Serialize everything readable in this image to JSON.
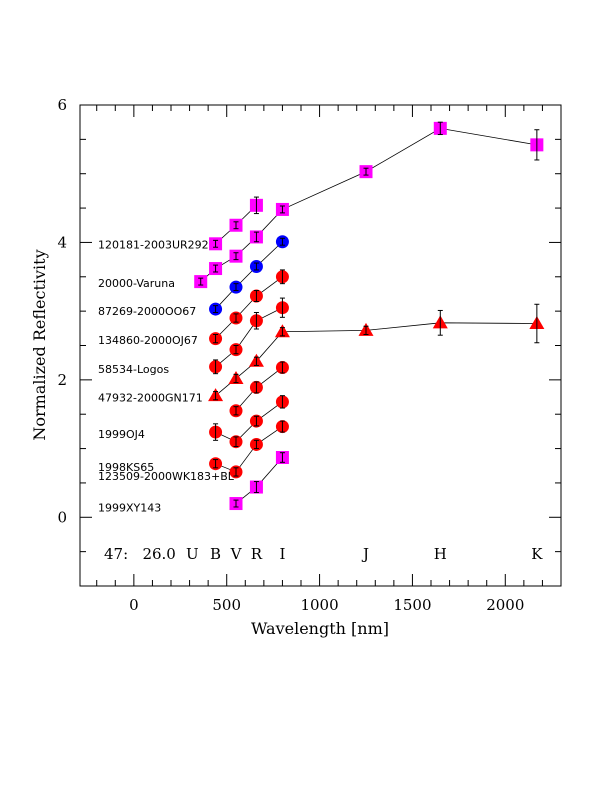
{
  "chart_data": {
    "type": "scatter",
    "xlabel": "Wavelength [nm]",
    "ylabel": "Normalized Reflectivity",
    "xlim": [
      -290,
      2300
    ],
    "ylim": [
      -1,
      6
    ],
    "xticks": [
      0,
      500,
      1000,
      1500,
      2000
    ],
    "yticks": [
      0,
      2,
      4,
      6
    ],
    "band_prefix": "47:   26.0",
    "bands": [
      {
        "label": "U",
        "x": 360
      },
      {
        "label": "B",
        "x": 440
      },
      {
        "label": "V",
        "x": 550
      },
      {
        "label": "R",
        "x": 660
      },
      {
        "label": "I",
        "x": 800
      },
      {
        "label": "J",
        "x": 1250
      },
      {
        "label": "H",
        "x": 1650
      },
      {
        "label": "K",
        "x": 2170
      }
    ],
    "series": [
      {
        "name": "120181-2003UR292",
        "marker": "square",
        "color": "#ff00ff",
        "points": [
          [
            360,
            3.43,
            0.05
          ],
          [
            440,
            3.62,
            0.05
          ],
          [
            550,
            3.8,
            0.05
          ],
          [
            660,
            4.08,
            0.07
          ],
          [
            800,
            4.48,
            0.05
          ],
          [
            1250,
            5.03,
            0.05
          ],
          [
            1650,
            5.66,
            0.09
          ],
          [
            2170,
            5.42,
            0.22
          ]
        ]
      },
      {
        "name": "",
        "marker": "square",
        "color": "#ff00ff",
        "points": [
          [
            440,
            3.98,
            0.05
          ],
          [
            550,
            4.25,
            0.05
          ],
          [
            660,
            4.54,
            0.12
          ]
        ]
      },
      {
        "name": "20000-Varuna",
        "marker": "circle",
        "color": "#0000ff",
        "points": [
          [
            440,
            3.03,
            0.05
          ],
          [
            550,
            3.35,
            0.05
          ],
          [
            660,
            3.65,
            0.05
          ],
          [
            800,
            4.01,
            0.05
          ]
        ]
      },
      {
        "name": "87269-2000OO67",
        "marker": "circle",
        "color": "#ff0000",
        "points": [
          [
            440,
            2.6,
            0.06
          ],
          [
            550,
            2.9,
            0.06
          ],
          [
            660,
            3.22,
            0.08
          ],
          [
            800,
            3.5,
            0.1
          ]
        ]
      },
      {
        "name": "134860-2000OJ67",
        "marker": "circle",
        "color": "#ff0000",
        "points": [
          [
            440,
            2.19,
            0.1
          ],
          [
            550,
            2.44,
            0.06
          ],
          [
            660,
            2.86,
            0.12
          ],
          [
            800,
            3.05,
            0.14
          ]
        ]
      },
      {
        "name": "58534-Logos",
        "marker": "triangle",
        "color": "#ff0000",
        "points": [
          [
            440,
            1.77,
            0.06
          ],
          [
            550,
            2.02,
            0.06
          ],
          [
            660,
            2.27,
            0.06
          ],
          [
            800,
            2.7,
            0.06
          ],
          [
            1250,
            2.72,
            0.06
          ],
          [
            1650,
            2.83,
            0.18
          ],
          [
            2170,
            2.82,
            0.28
          ]
        ]
      },
      {
        "name": "47932-2000GN171",
        "marker": "circle",
        "color": "#ff0000",
        "points": [
          [
            550,
            1.55,
            0.06
          ],
          [
            660,
            1.89,
            0.08
          ],
          [
            800,
            2.18,
            0.08
          ]
        ]
      },
      {
        "name": "1999OJ4",
        "marker": "circle",
        "color": "#ff0000",
        "points": [
          [
            440,
            1.24,
            0.12
          ],
          [
            550,
            1.1,
            0.07
          ],
          [
            660,
            1.4,
            0.07
          ],
          [
            800,
            1.68,
            0.09
          ]
        ]
      },
      {
        "name": "1998KS65",
        "marker": "circle",
        "color": "#ff0000",
        "points": [
          [
            440,
            0.78,
            0.06
          ],
          [
            550,
            0.66,
            0.06
          ],
          [
            660,
            1.06,
            0.06
          ],
          [
            800,
            1.32,
            0.08
          ]
        ]
      },
      {
        "name": "123509-2000WK183+BL",
        "marker": "square",
        "color": "#ff00ff",
        "points": [
          [
            550,
            0.2,
            0.05
          ],
          [
            660,
            0.44,
            0.08
          ],
          [
            800,
            0.87,
            0.07
          ]
        ]
      },
      {
        "name": "1999XY143",
        "marker": "none",
        "color": "#000000",
        "points": []
      }
    ],
    "labels": [
      {
        "text": "120181-2003UR292",
        "y": 3.97
      },
      {
        "text": "20000-Varuna",
        "y": 3.41
      },
      {
        "text": "87269-2000OO67",
        "y": 3.0
      },
      {
        "text": "134860-2000OJ67",
        "y": 2.58
      },
      {
        "text": "58534-Logos",
        "y": 2.16
      },
      {
        "text": "47932-2000GN171",
        "y": 1.74
      },
      {
        "text": "1999OJ4",
        "y": 1.21
      },
      {
        "text": "1998KS65",
        "y": 0.73
      },
      {
        "text": "123509-2000WK183+BL",
        "y": 0.6
      },
      {
        "text": "1999XY143",
        "y": 0.14
      }
    ]
  }
}
